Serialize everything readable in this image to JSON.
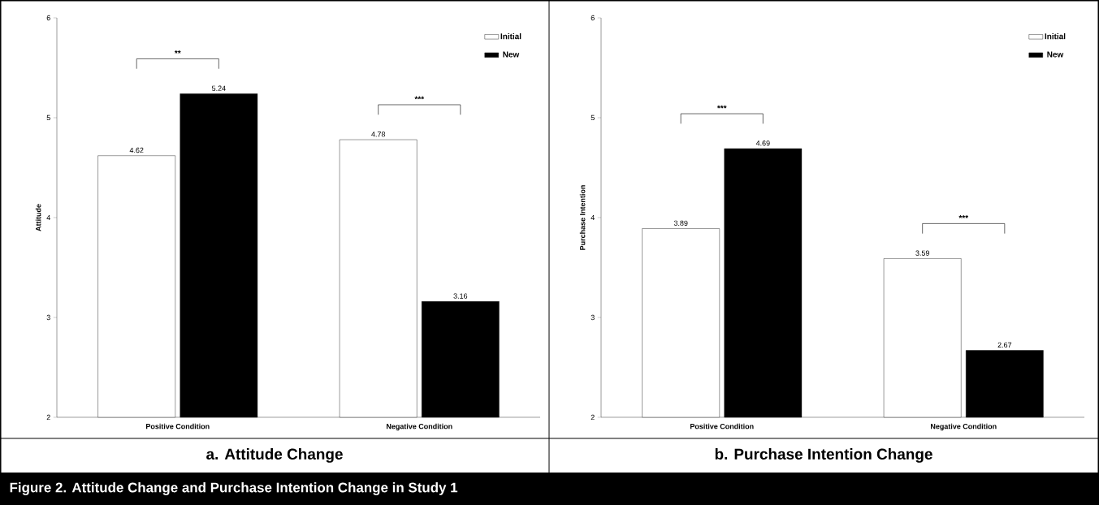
{
  "chart_data": [
    {
      "type": "bar",
      "title": "a. Attitude Change",
      "ylabel": "Attitude",
      "categories": [
        "Positive Condition",
        "Negative Condition"
      ],
      "series": [
        {
          "name": "Initial",
          "color": "#ffffff",
          "values": [
            4.62,
            4.78
          ]
        },
        {
          "name": "New",
          "color": "#000000",
          "values": [
            5.24,
            3.16
          ]
        }
      ],
      "ylim": [
        2,
        6
      ],
      "yticks": [
        2,
        3,
        4,
        5,
        6
      ],
      "data_labels": true,
      "legend": "top right",
      "annotations": [
        "**",
        "***",
        "Figure 2. Attitude Change and Purchase Intention Change in Study 1"
      ]
    },
    {
      "type": "bar",
      "title": "b. Purchase Intention Change",
      "ylabel": "Purchase Intention",
      "categories": [
        "Positive Condition",
        "Negative Condition"
      ],
      "series": [
        {
          "name": "Initial",
          "color": "#ffffff",
          "values": [
            3.89,
            3.59
          ]
        },
        {
          "name": "New",
          "color": "#000000",
          "values": [
            4.69,
            2.67
          ]
        }
      ],
      "ylim": [
        2,
        6
      ],
      "yticks": [
        2,
        3,
        4,
        5,
        6
      ],
      "data_labels": true,
      "legend": "top right",
      "annotations": [
        "***",
        "***"
      ]
    }
  ]
}
